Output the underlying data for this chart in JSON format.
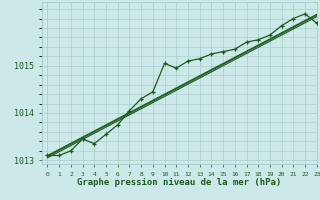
{
  "xlabel": "Graphe pression niveau de la mer (hPa)",
  "background_color": "#cce8e8",
  "grid_color": "#aacccc",
  "line_color": "#1a5c1a",
  "hours": [
    0,
    1,
    2,
    3,
    4,
    5,
    6,
    7,
    8,
    9,
    10,
    11,
    12,
    13,
    14,
    15,
    16,
    17,
    18,
    19,
    20,
    21,
    22,
    23
  ],
  "pressure_main": [
    1013.1,
    1013.1,
    1013.2,
    1013.45,
    1013.35,
    1013.55,
    1013.75,
    1014.05,
    1014.3,
    1014.45,
    1015.05,
    1014.95,
    1015.1,
    1015.15,
    1015.25,
    1015.3,
    1015.35,
    1015.5,
    1015.55,
    1015.65,
    1015.85,
    1016.0,
    1016.1,
    1015.9
  ],
  "pressure_lin1": [
    1013.05,
    1013.18,
    1013.31,
    1013.44,
    1013.57,
    1013.7,
    1013.83,
    1013.96,
    1014.09,
    1014.22,
    1014.35,
    1014.48,
    1014.61,
    1014.74,
    1014.87,
    1015.0,
    1015.13,
    1015.26,
    1015.39,
    1015.52,
    1015.65,
    1015.78,
    1015.91,
    1016.04
  ],
  "pressure_lin2": [
    1013.08,
    1013.21,
    1013.34,
    1013.47,
    1013.6,
    1013.73,
    1013.86,
    1013.99,
    1014.12,
    1014.25,
    1014.38,
    1014.51,
    1014.64,
    1014.77,
    1014.9,
    1015.03,
    1015.16,
    1015.29,
    1015.42,
    1015.55,
    1015.68,
    1015.81,
    1015.94,
    1016.07
  ],
  "pressure_lin3": [
    1013.1,
    1013.23,
    1013.36,
    1013.49,
    1013.62,
    1013.75,
    1013.88,
    1014.01,
    1014.14,
    1014.27,
    1014.4,
    1014.53,
    1014.66,
    1014.79,
    1014.92,
    1015.05,
    1015.18,
    1015.31,
    1015.44,
    1015.57,
    1015.7,
    1015.83,
    1015.96,
    1016.09
  ],
  "ylim": [
    1012.92,
    1016.35
  ],
  "yticks": [
    1013,
    1014,
    1015
  ],
  "xlim": [
    -0.5,
    23
  ]
}
